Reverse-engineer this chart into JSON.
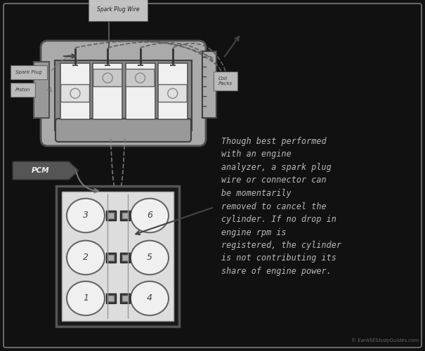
{
  "bg_color": "#111111",
  "border_color": "#666666",
  "description_lines": [
    "Though best performed",
    "with an engine",
    "analyzer, a spark plug",
    "wire or connector can",
    "be momentarily",
    "removed to cancel the",
    "cylinder. If no drop in",
    "engine rpm is",
    "registered, the cylinder",
    "is not contributing its",
    "share of engine power."
  ],
  "watermark": "© EarASEStudyGuides.com",
  "label_spark_plug_wire": "Spark Plug Wire",
  "label_spark_plug": "Spark Plug",
  "label_piston": "Piston",
  "label_coil_packs": "Coil\nPacks",
  "label_pcm": "PCM",
  "cylinder_numbers": [
    3,
    6,
    2,
    5,
    1,
    4
  ],
  "text_color": "#bbbbbb",
  "label_color": "#333333",
  "engine_fill": "#b8b8b8",
  "cyl_fill": "#f0f0f0",
  "dark_gray": "#444444",
  "mid_gray": "#777777",
  "coil_fill": "#999999",
  "block_fill": "#dddddd",
  "pcm_fill": "#555555"
}
